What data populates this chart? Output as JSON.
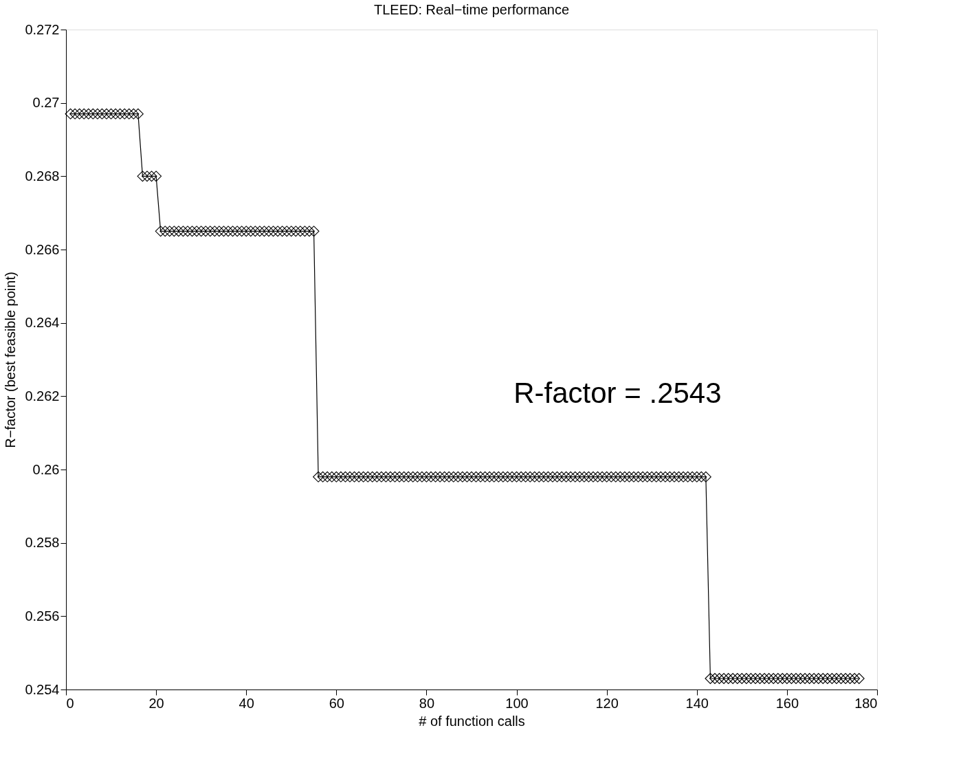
{
  "chart_data": {
    "type": "line",
    "title": "TLEED: Real−time performance",
    "xlabel": "# of function calls",
    "ylabel": "R−factor (best feasible point)",
    "x": [
      1,
      2,
      3,
      4,
      5,
      6,
      7,
      8,
      9,
      10,
      11,
      12,
      13,
      14,
      15,
      16,
      17,
      18,
      19,
      20,
      21,
      22,
      23,
      24,
      25,
      26,
      27,
      28,
      29,
      30,
      31,
      32,
      33,
      34,
      35,
      36,
      37,
      38,
      39,
      40,
      41,
      42,
      43,
      44,
      45,
      46,
      47,
      48,
      49,
      50,
      51,
      52,
      53,
      54,
      55,
      56,
      57,
      58,
      59,
      60,
      61,
      62,
      63,
      64,
      65,
      66,
      67,
      68,
      69,
      70,
      71,
      72,
      73,
      74,
      75,
      76,
      77,
      78,
      79,
      80,
      81,
      82,
      83,
      84,
      85,
      86,
      87,
      88,
      89,
      90,
      91,
      92,
      93,
      94,
      95,
      96,
      97,
      98,
      99,
      100,
      101,
      102,
      103,
      104,
      105,
      106,
      107,
      108,
      109,
      110,
      111,
      112,
      113,
      114,
      115,
      116,
      117,
      118,
      119,
      120,
      121,
      122,
      123,
      124,
      125,
      126,
      127,
      128,
      129,
      130,
      131,
      132,
      133,
      134,
      135,
      136,
      137,
      138,
      139,
      140,
      141,
      142,
      143,
      144,
      145,
      146,
      147,
      148,
      149,
      150,
      151,
      152,
      153,
      154,
      155,
      156,
      157,
      158,
      159,
      160,
      161,
      162,
      163,
      164,
      165,
      166,
      167,
      168,
      169,
      170,
      171,
      172,
      173,
      174,
      175,
      176
    ],
    "series": [
      {
        "color": "#000000",
        "values": [
          0.2697,
          0.2697,
          0.2697,
          0.2697,
          0.2697,
          0.2697,
          0.2697,
          0.2697,
          0.2697,
          0.2697,
          0.2697,
          0.2697,
          0.2697,
          0.2697,
          0.2697,
          0.2697,
          0.268,
          0.268,
          0.268,
          0.268,
          0.2665,
          0.2665,
          0.2665,
          0.2665,
          0.2665,
          0.2665,
          0.2665,
          0.2665,
          0.2665,
          0.2665,
          0.2665,
          0.2665,
          0.2665,
          0.2665,
          0.2665,
          0.2665,
          0.2665,
          0.2665,
          0.2665,
          0.2665,
          0.2665,
          0.2665,
          0.2665,
          0.2665,
          0.2665,
          0.2665,
          0.2665,
          0.2665,
          0.2665,
          0.2665,
          0.2665,
          0.2665,
          0.2665,
          0.2665,
          0.2665,
          0.2598,
          0.2598,
          0.2598,
          0.2598,
          0.2598,
          0.2598,
          0.2598,
          0.2598,
          0.2598,
          0.2598,
          0.2598,
          0.2598,
          0.2598,
          0.2598,
          0.2598,
          0.2598,
          0.2598,
          0.2598,
          0.2598,
          0.2598,
          0.2598,
          0.2598,
          0.2598,
          0.2598,
          0.2598,
          0.2598,
          0.2598,
          0.2598,
          0.2598,
          0.2598,
          0.2598,
          0.2598,
          0.2598,
          0.2598,
          0.2598,
          0.2598,
          0.2598,
          0.2598,
          0.2598,
          0.2598,
          0.2598,
          0.2598,
          0.2598,
          0.2598,
          0.2598,
          0.2598,
          0.2598,
          0.2598,
          0.2598,
          0.2598,
          0.2598,
          0.2598,
          0.2598,
          0.2598,
          0.2598,
          0.2598,
          0.2598,
          0.2598,
          0.2598,
          0.2598,
          0.2598,
          0.2598,
          0.2598,
          0.2598,
          0.2598,
          0.2598,
          0.2598,
          0.2598,
          0.2598,
          0.2598,
          0.2598,
          0.2598,
          0.2598,
          0.2598,
          0.2598,
          0.2598,
          0.2598,
          0.2598,
          0.2598,
          0.2598,
          0.2598,
          0.2598,
          0.2598,
          0.2598,
          0.2598,
          0.2598,
          0.2598,
          0.2543,
          0.2543,
          0.2543,
          0.2543,
          0.2543,
          0.2543,
          0.2543,
          0.2543,
          0.2543,
          0.2543,
          0.2543,
          0.2543,
          0.2543,
          0.2543,
          0.2543,
          0.2543,
          0.2543,
          0.2543,
          0.2543,
          0.2543,
          0.2543,
          0.2543,
          0.2543,
          0.2543,
          0.2543,
          0.2543,
          0.2543,
          0.2543,
          0.2543,
          0.2543,
          0.2543,
          0.2543,
          0.2543,
          0.2543
        ]
      }
    ],
    "xlim": [
      0,
      180
    ],
    "xticks": [
      0,
      20,
      40,
      60,
      80,
      100,
      120,
      140,
      160,
      180
    ],
    "ylim": [
      0.254,
      0.272
    ],
    "yticks": [
      0.254,
      0.256,
      0.258,
      0.26,
      0.262,
      0.264,
      0.266,
      0.268,
      0.27,
      0.272
    ],
    "marker": "diamond",
    "line_style": "solid",
    "grid": false,
    "annotations": [
      "R-factor = .2543"
    ]
  }
}
